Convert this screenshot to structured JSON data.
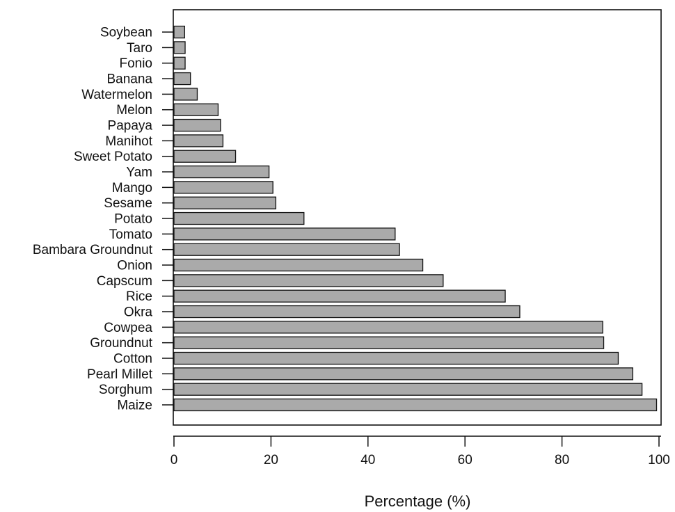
{
  "chart_data": {
    "type": "bar",
    "orientation": "horizontal",
    "categories": [
      "Maize",
      "Sorghum",
      "Pearl Millet",
      "Cotton",
      "Groundnut",
      "Cowpea",
      "Okra",
      "Rice",
      "Capscum",
      "Onion",
      "Bambara Groundnut",
      "Tomato",
      "Potato",
      "Sesame",
      "Mango",
      "Yam",
      "Sweet Potato",
      "Manihot",
      "Papaya",
      "Melon",
      "Watermelon",
      "Banana",
      "Fonio",
      "Taro",
      "Soybean"
    ],
    "values": [
      99.5,
      96.5,
      94.6,
      91.6,
      88.6,
      88.4,
      71.3,
      68.3,
      55.5,
      51.3,
      46.5,
      45.6,
      26.8,
      21.0,
      20.4,
      19.6,
      12.7,
      10.1,
      9.6,
      9.1,
      4.8,
      3.4,
      2.3,
      2.3,
      2.2
    ],
    "title": "",
    "xlabel": "Percentage (%)",
    "ylabel": "",
    "xlim": [
      0,
      100
    ],
    "xticks": [
      "0",
      "20",
      "40",
      "60",
      "80",
      "100"
    ],
    "grid": false,
    "colors": {
      "bar_fill": "#aaaaaa",
      "bar_stroke": "#111111",
      "axis": "#111111"
    }
  }
}
